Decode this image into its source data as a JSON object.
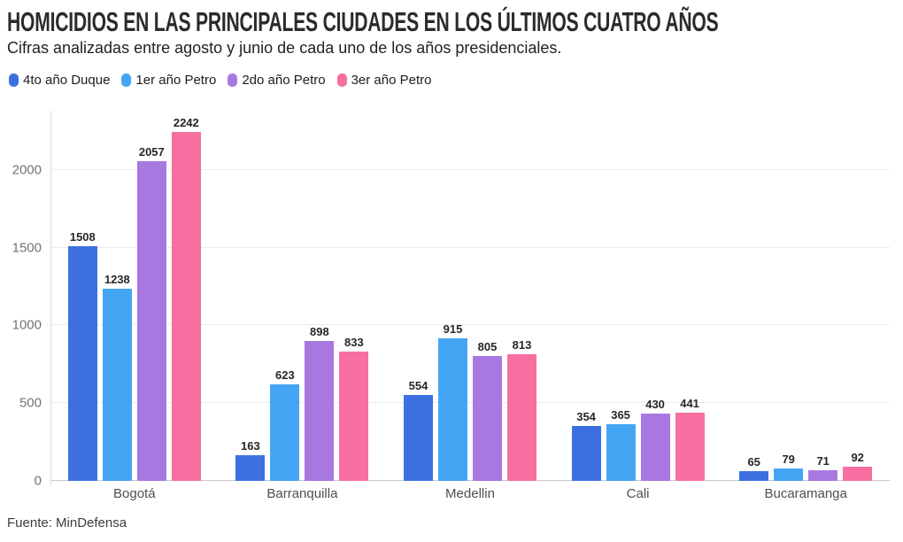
{
  "header": {
    "title": "HOMICIDIOS EN LAS PRINCIPALES CIUDADES EN LOS ÚLTIMOS CUATRO AÑOS",
    "subtitle": "Cifras analizadas entre agosto y junio de cada uno de los años presidenciales."
  },
  "footer": {
    "source": "Fuente: MinDefensa"
  },
  "chart_data": {
    "type": "bar",
    "title": "HOMICIDIOS EN LAS PRINCIPALES CIUDADES EN LOS ÚLTIMOS CUATRO AÑOS",
    "subtitle": "Cifras analizadas entre agosto y junio de cada uno de los años presidenciales.",
    "categories": [
      "Bogotá",
      "Barranquilla",
      "Medellin",
      "Cali",
      "Bucaramanga"
    ],
    "series": [
      {
        "name": "4to año Duque",
        "color": "#3c70e0",
        "values": [
          1508,
          163,
          554,
          354,
          65
        ]
      },
      {
        "name": "1er año Petro",
        "color": "#45a5f5",
        "values": [
          1238,
          623,
          915,
          365,
          79
        ]
      },
      {
        "name": "2do año Petro",
        "color": "#a878e0",
        "values": [
          2057,
          898,
          805,
          430,
          71
        ]
      },
      {
        "name": "3er año Petro",
        "color": "#f66fa0",
        "values": [
          2242,
          833,
          813,
          441,
          92
        ]
      }
    ],
    "yticks": [
      0,
      500,
      1000,
      1500,
      2000
    ],
    "ylim": [
      0,
      2380
    ],
    "xlabel": "",
    "ylabel": "",
    "grid": true,
    "value_labels": true,
    "legend_position": "top",
    "source": "Fuente: MinDefensa",
    "colors": {
      "gridline": "#ebebeb",
      "baseline": "#c9c9c9",
      "axis_line": "#d9d9d9",
      "title_text": "#2b2b2b",
      "value_label_text": "#262626",
      "tick_text": "#737373",
      "category_text": "#4f4f4f"
    }
  }
}
